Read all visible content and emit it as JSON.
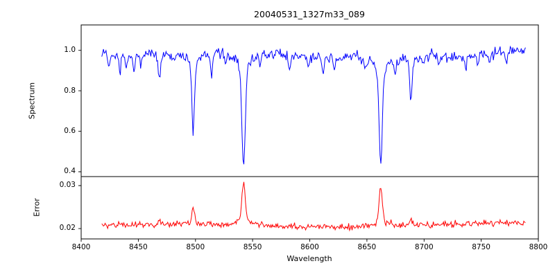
{
  "chart_data": {
    "type": "line",
    "title": "20040531_1327m33_089",
    "xlabel": "Wavelength",
    "xlim": [
      8400,
      8800
    ],
    "x_ticks": [
      8400,
      8450,
      8500,
      8550,
      8600,
      8650,
      8700,
      8750,
      8800
    ],
    "x_data_range": [
      8418,
      8789
    ],
    "x_step": 0.74,
    "grid": false,
    "legend": "none",
    "panels": [
      {
        "name": "spectrum",
        "ylabel": "Spectrum",
        "ylim": [
          0.376,
          1.126
        ],
        "y_ticks": [
          0.4,
          0.6,
          0.8,
          1.0
        ],
        "y_tick_labels": [
          "1.0",
          "0.8",
          "0.6",
          "0.4"
        ],
        "line_color": "#0000ff",
        "continuum_level": 0.99,
        "noise_sigma": 0.013,
        "absorption_lines": [
          {
            "center": 8424.2,
            "depth": 0.08,
            "sigma": 0.8
          },
          {
            "center": 8433.9,
            "depth": 0.1,
            "sigma": 0.8
          },
          {
            "center": 8439.8,
            "depth": 0.06,
            "sigma": 0.7
          },
          {
            "center": 8446.4,
            "depth": 0.09,
            "sigma": 0.8
          },
          {
            "center": 8452.0,
            "depth": 0.05,
            "sigma": 0.7
          },
          {
            "center": 8468.4,
            "depth": 0.13,
            "sigma": 0.9
          },
          {
            "center": 8481.0,
            "depth": 0.05,
            "sigma": 0.7
          },
          {
            "center": 8498.0,
            "depth": 0.4,
            "sigma": 1.1
          },
          {
            "center": 8514.1,
            "depth": 0.1,
            "sigma": 0.9
          },
          {
            "center": 8526.0,
            "depth": 0.05,
            "sigma": 0.7
          },
          {
            "center": 8542.1,
            "depth": 0.57,
            "sigma": 1.4
          },
          {
            "center": 8556.8,
            "depth": 0.05,
            "sigma": 0.7
          },
          {
            "center": 8582.3,
            "depth": 0.08,
            "sigma": 0.8
          },
          {
            "center": 8598.8,
            "depth": 0.07,
            "sigma": 0.7
          },
          {
            "center": 8611.8,
            "depth": 0.08,
            "sigma": 0.8
          },
          {
            "center": 8621.6,
            "depth": 0.07,
            "sigma": 0.7
          },
          {
            "center": 8648.0,
            "depth": 0.05,
            "sigma": 0.7
          },
          {
            "center": 8662.1,
            "depth": 0.55,
            "sigma": 1.3
          },
          {
            "center": 8674.7,
            "depth": 0.09,
            "sigma": 0.8
          },
          {
            "center": 8688.6,
            "depth": 0.22,
            "sigma": 1.0
          },
          {
            "center": 8699.0,
            "depth": 0.05,
            "sigma": 0.7
          },
          {
            "center": 8713.2,
            "depth": 0.06,
            "sigma": 0.7
          },
          {
            "center": 8736.5,
            "depth": 0.07,
            "sigma": 0.8
          },
          {
            "center": 8747.0,
            "depth": 0.05,
            "sigma": 0.7
          },
          {
            "center": 8757.3,
            "depth": 0.06,
            "sigma": 0.7
          },
          {
            "center": 8772.0,
            "depth": 0.05,
            "sigma": 0.7
          }
        ]
      },
      {
        "name": "error",
        "ylabel": "Error",
        "ylim": [
          0.0176,
          0.0321
        ],
        "y_ticks": [
          0.02,
          0.03
        ],
        "y_tick_labels": [
          "0.03",
          "0.02"
        ],
        "line_color": "#ff0000",
        "baseline": 0.0207,
        "noise_sigma": 0.00035,
        "peaks": [
          {
            "center": 8498.0,
            "height": 0.0042,
            "sigma": 1.2
          },
          {
            "center": 8542.1,
            "height": 0.0101,
            "sigma": 1.4
          },
          {
            "center": 8662.1,
            "height": 0.0094,
            "sigma": 1.3
          },
          {
            "center": 8688.6,
            "height": 0.0016,
            "sigma": 1.0
          },
          {
            "center": 8468.4,
            "height": 0.0006,
            "sigma": 0.9
          }
        ]
      }
    ]
  }
}
